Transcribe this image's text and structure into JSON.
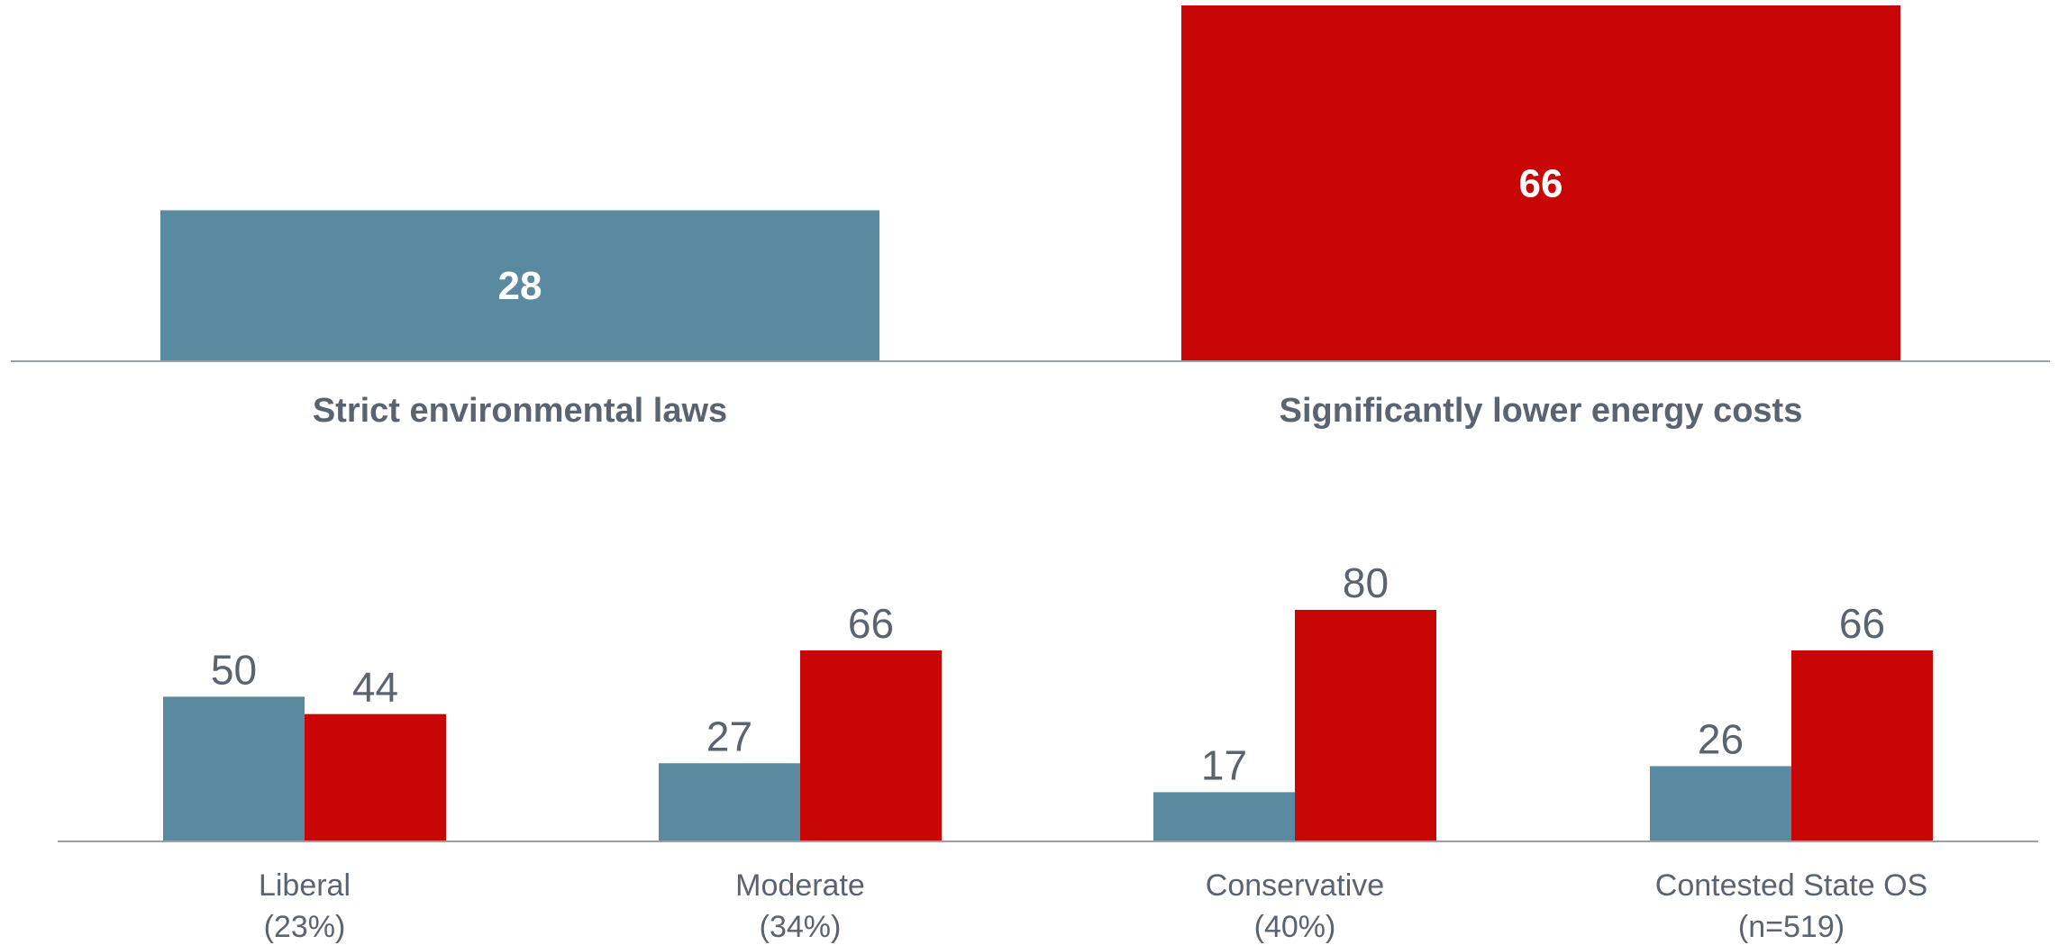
{
  "colors": {
    "blue": "#5a8a9f",
    "red": "#c90606",
    "axis": "#9aa0a6",
    "text": "#5a6470"
  },
  "chart_data": [
    {
      "type": "bar",
      "categories": [
        "Strict environmental laws",
        "Significantly lower energy costs"
      ],
      "values": [
        28,
        66
      ],
      "ylim": [
        0,
        66
      ]
    },
    {
      "type": "bar",
      "categories": [
        "Liberal",
        "Moderate",
        "Conservative",
        "Contested State OS"
      ],
      "subcategories": [
        "(23%)",
        "(34%)",
        "(40%)",
        "(n=519)"
      ],
      "series": [
        {
          "values": [
            50,
            27,
            17,
            26
          ]
        },
        {
          "values": [
            44,
            66,
            80,
            66
          ]
        }
      ],
      "ylim": [
        0,
        80
      ]
    }
  ]
}
